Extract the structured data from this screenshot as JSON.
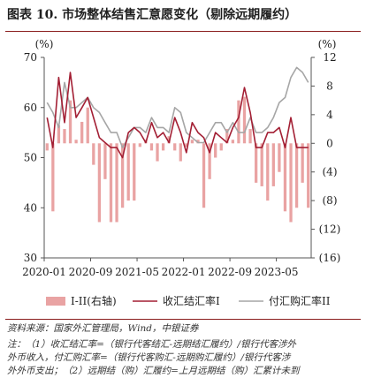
{
  "header": {
    "title": "图表 10. 市场整体结售汇意愿变化（剔除远期履约）"
  },
  "footer": {
    "source": "资料来源：国家外汇管理局，Wind，中银证券",
    "note_lines": [
      "注：（1）收汇结汇率=（银行代客结汇-远期结汇履约）/银行代客涉外",
      "外币收入，付汇购汇率=（银行代客购汇-远期购汇履约）/银行代客涉",
      "外外币支出；（2）远期结（购）汇履约=上月远期结（购）汇累计未到"
    ]
  },
  "chart_data": {
    "type": "bar+line",
    "left_axis": {
      "unit": "(%)",
      "min": 30,
      "max": 70,
      "ticks": [
        30,
        40,
        50,
        60,
        70
      ]
    },
    "right_axis": {
      "unit": "(%)",
      "min": -16,
      "max": 12,
      "ticks": [
        "(16)",
        "(12)",
        "(8)",
        "(4)",
        "0",
        "4",
        "8",
        "12"
      ]
    },
    "x_tick_labels": [
      "2020-01",
      "2020-09",
      "2021-05",
      "2022-01",
      "2022-09",
      "2023-05"
    ],
    "x_tick_index": [
      0,
      8,
      16,
      24,
      32,
      40
    ],
    "n_points": 46,
    "series": [
      {
        "name": "I-II(右轴)",
        "type": "bar",
        "axis": "right",
        "color": "#e9a3a3",
        "values": [
          -1,
          -9.5,
          2.5,
          2,
          6,
          0.5,
          3,
          5,
          -3,
          -11,
          -5,
          -11,
          -11,
          -9,
          -8,
          -8,
          -0.5,
          0.5,
          -1,
          -2.5,
          -1,
          1,
          -1,
          -2.5,
          -0.5,
          0.5,
          0.5,
          -9,
          -5,
          -2,
          -1,
          2,
          0.5,
          6,
          6.5,
          2,
          -5.5,
          -6,
          -8,
          -6,
          -4,
          -9.5,
          -11,
          -9,
          -5.5,
          -9
        ]
      },
      {
        "name": "收汇结汇率I",
        "type": "line",
        "axis": "left",
        "color": "#a31f34",
        "values": [
          58,
          52,
          66,
          57,
          67,
          58,
          60,
          62,
          58,
          54,
          53,
          52,
          52,
          50,
          55,
          56,
          55,
          53,
          57,
          54,
          55,
          53,
          58,
          55,
          51,
          57,
          55,
          54,
          51,
          55,
          54,
          53,
          56,
          58,
          64,
          59,
          52,
          52,
          55,
          55,
          56,
          52,
          58,
          52,
          52,
          52
        ]
      },
      {
        "name": "付汇购汇率II",
        "type": "line",
        "axis": "left",
        "color": "#a6a6a6",
        "values": [
          61,
          59,
          56,
          65,
          60,
          60,
          61,
          62,
          60,
          59,
          57,
          55,
          55,
          52,
          54,
          56,
          56,
          55,
          58,
          56,
          56,
          55,
          60,
          59,
          55,
          54,
          53,
          53,
          55,
          57,
          57,
          55,
          57,
          55,
          55,
          58,
          55,
          55,
          56,
          58,
          61,
          62,
          66,
          68,
          67,
          65
        ]
      }
    ],
    "legend": {
      "placement": "bottom"
    }
  }
}
